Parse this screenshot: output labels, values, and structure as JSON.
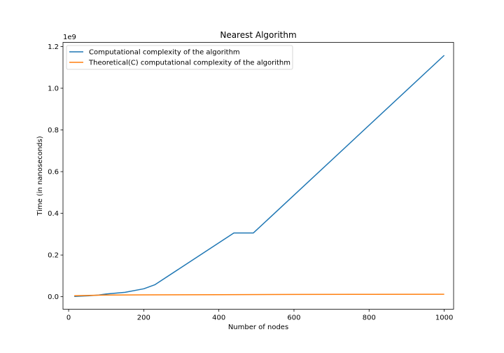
{
  "chart_data": {
    "type": "line",
    "title": "Nearest Algorithm",
    "xlabel": "Number of nodes",
    "ylabel": "Time (in nanoseconds)",
    "y_offset_label": "1e9",
    "xlim": [
      -15,
      1025
    ],
    "ylim": [
      -0.06,
      1.22
    ],
    "y_scale_note": "values in units of 1e9 ns",
    "xticks": [
      0,
      200,
      400,
      600,
      800,
      1000
    ],
    "xtick_labels": [
      "0",
      "200",
      "400",
      "600",
      "800",
      "1000"
    ],
    "yticks": [
      0.0,
      0.2,
      0.4,
      0.6,
      0.8,
      1.0,
      1.2
    ],
    "ytick_labels": [
      "0.0",
      "0.2",
      "0.4",
      "0.6",
      "0.8",
      "1.0",
      "1.2"
    ],
    "grid": false,
    "legend_position": "top-left",
    "series": [
      {
        "name": "Computational complexity of the algorithm",
        "color": "#1f77b4",
        "x": [
          15,
          50,
          80,
          100,
          150,
          200,
          230,
          440,
          492,
          1000
        ],
        "y": [
          0.001,
          0.004,
          0.008,
          0.013,
          0.021,
          0.038,
          0.058,
          0.306,
          0.306,
          1.158
        ]
      },
      {
        "name": "Theoretical(C) computational complexity of the algorithm",
        "color": "#ff7f0e",
        "x": [
          15,
          100,
          200,
          400,
          600,
          800,
          1000
        ],
        "y": [
          0.005,
          0.008,
          0.009,
          0.01,
          0.011,
          0.0115,
          0.012
        ]
      }
    ]
  }
}
